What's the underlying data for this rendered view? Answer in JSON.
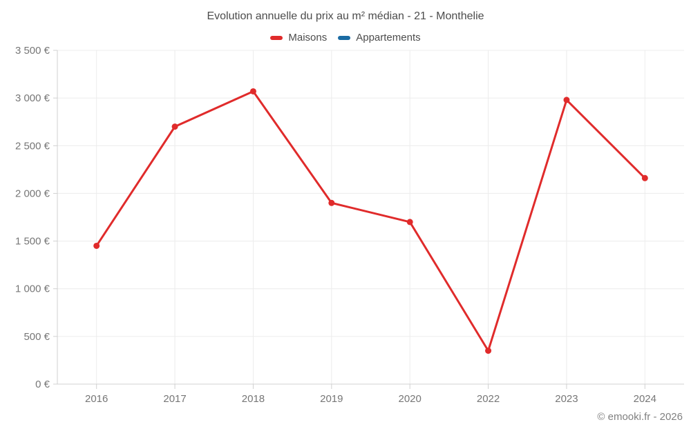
{
  "title": "Evolution annuelle du prix au m² médian - 21 - Monthelie",
  "legend": [
    {
      "label": "Maisons",
      "color": "#e02b2b"
    },
    {
      "label": "Appartements",
      "color": "#1a6ba3"
    }
  ],
  "footer": {
    "copyright": "© emooki.fr - 2026"
  },
  "colors": {
    "maisons": "#e02b2b",
    "appartements": "#1a6ba3",
    "gridline": "#ececec",
    "axis_line": "#d0d0d0",
    "tick_label": "#767676",
    "title_text": "#4c4c4c"
  },
  "chart_data": {
    "type": "line",
    "title": "Evolution annuelle du prix au m² médian - 21 - Monthelie",
    "categories": [
      "2016",
      "2017",
      "2018",
      "2019",
      "2020",
      "2022",
      "2023",
      "2024"
    ],
    "series": [
      {
        "name": "Maisons",
        "color": "#e02b2b",
        "values": [
          1450,
          2700,
          3070,
          1900,
          1700,
          350,
          2980,
          2160
        ]
      },
      {
        "name": "Appartements",
        "color": "#1a6ba3",
        "values": []
      }
    ],
    "xlabel": "",
    "ylabel": "",
    "ylim": [
      0,
      3500
    ],
    "ytick_step": 500,
    "ytick_labels": [
      "0 €",
      "500 €",
      "1 000 €",
      "1 500 €",
      "2 000 €",
      "2 500 €",
      "3 000 €",
      "3 500 €"
    ],
    "grid": true,
    "legend_position": "top",
    "currency": "€"
  }
}
